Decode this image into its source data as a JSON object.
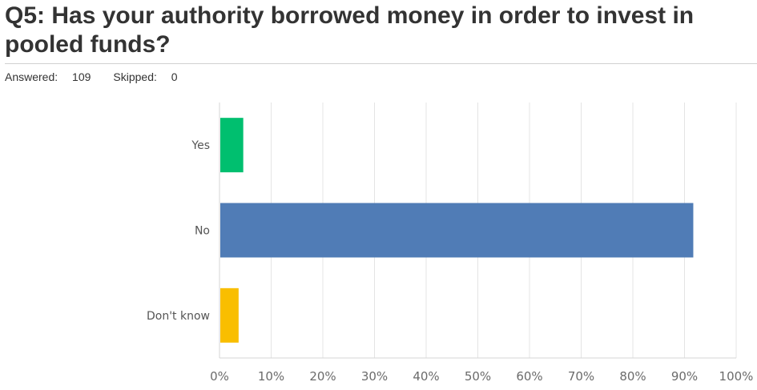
{
  "question": {
    "title": "Q5: Has your authority borrowed money in order to invest in pooled funds?",
    "answered_label": "Answered:",
    "answered": "109",
    "skipped_label": "Skipped:",
    "skipped": "0"
  },
  "chart_data": {
    "type": "bar",
    "orientation": "horizontal",
    "categories": [
      "Yes",
      "No",
      "Don't know"
    ],
    "values": [
      4.6,
      91.7,
      3.7
    ],
    "colors": [
      "#00bf6f",
      "#507cb6",
      "#f9be00"
    ],
    "xlim": [
      0,
      100
    ],
    "x_ticks": [
      "0%",
      "10%",
      "20%",
      "30%",
      "40%",
      "50%",
      "60%",
      "70%",
      "80%",
      "90%",
      "100%"
    ],
    "grid": true,
    "title": "",
    "xlabel": "",
    "ylabel": ""
  }
}
